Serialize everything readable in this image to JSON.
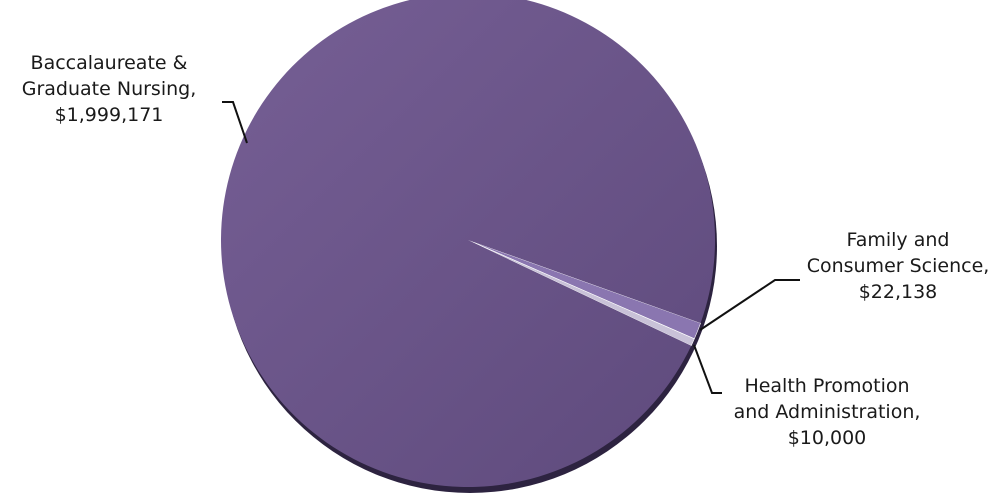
{
  "chart_data": {
    "type": "pie",
    "title": "",
    "slices": [
      {
        "label_lines": [
          "Baccalaureate &",
          "Graduate Nursing,",
          "$1,999,171"
        ],
        "value": 1999171,
        "color": "#6a5489"
      },
      {
        "label_lines": [
          "Family and",
          "Consumer Science,",
          "$22,138"
        ],
        "value": 22138,
        "color": "#8a76b0"
      },
      {
        "label_lines": [
          "Health Promotion",
          "and Administration,",
          "$10,000"
        ],
        "value": 10000,
        "color": "#c9c2d8"
      }
    ]
  }
}
